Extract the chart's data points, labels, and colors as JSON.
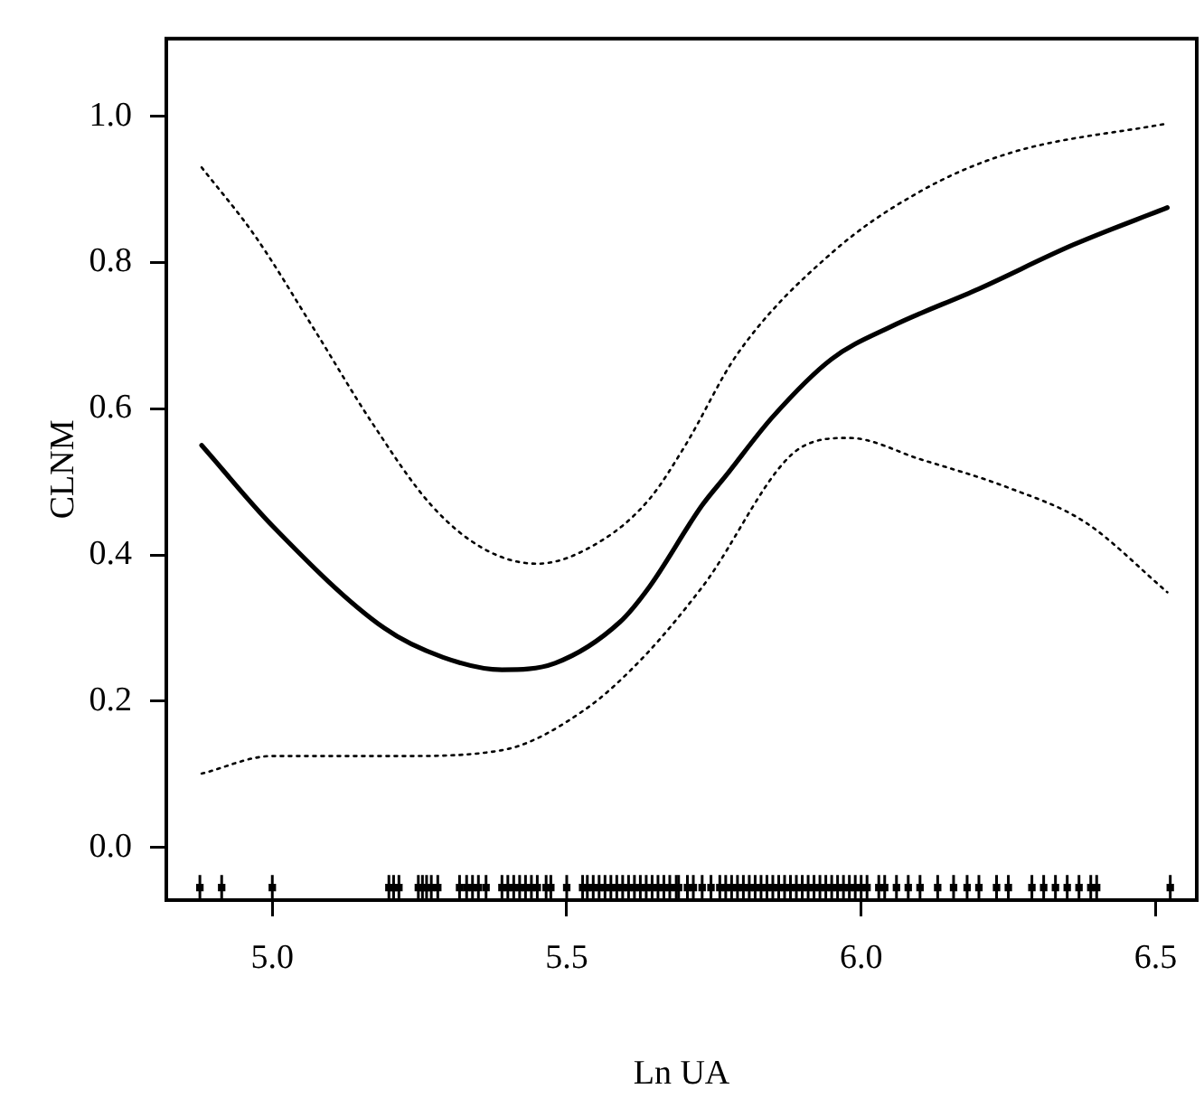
{
  "chart_data": {
    "type": "line",
    "xlabel": "Ln UA",
    "ylabel": "CLNM",
    "xlim": [
      4.82,
      6.57
    ],
    "ylim": [
      -0.072,
      1.106
    ],
    "xticks": [
      {
        "value": 5,
        "label": "5.0"
      },
      {
        "value": 5.5,
        "label": "5.5"
      },
      {
        "value": 6,
        "label": "6.0"
      },
      {
        "value": 6.5,
        "label": "6.5"
      }
    ],
    "yticks": [
      {
        "value": 0,
        "label": "0.0"
      },
      {
        "value": 0.2,
        "label": "0.2"
      },
      {
        "value": 0.4,
        "label": "0.4"
      },
      {
        "value": 0.6,
        "label": "0.6"
      },
      {
        "value": 0.8,
        "label": "0.8"
      },
      {
        "value": 1,
        "label": "1.0"
      }
    ],
    "grid": false,
    "legend": false,
    "series": [
      {
        "color": "#000000",
        "line_style": "solid",
        "x": [
          4.88,
          5.0,
          5.19,
          5.29,
          5.39,
          5.48,
          5.59,
          5.64,
          5.73,
          5.77,
          5.85,
          5.95,
          6.05,
          6.2,
          6.36,
          6.52
        ],
        "values": [
          0.55,
          0.44,
          0.3,
          0.26,
          0.243,
          0.252,
          0.308,
          0.356,
          0.468,
          0.508,
          0.589,
          0.668,
          0.712,
          0.764,
          0.824,
          0.875
        ]
      },
      {
        "color": "#000000",
        "line_style": "dotted",
        "x": [
          4.88,
          4.97,
          5.07,
          5.17,
          5.27,
          5.36,
          5.45,
          5.56,
          5.64,
          5.7,
          5.79,
          5.95,
          6.1,
          6.25,
          6.52
        ],
        "values": [
          0.93,
          0.837,
          0.71,
          0.58,
          0.468,
          0.408,
          0.388,
          0.42,
          0.476,
          0.548,
          0.675,
          0.813,
          0.897,
          0.949,
          0.99
        ]
      },
      {
        "color": "#000000",
        "line_style": "dotted",
        "x": [
          4.88,
          5.0,
          5.22,
          5.39,
          5.53,
          5.63,
          5.73,
          5.9,
          5.98,
          6.1,
          6.25,
          6.38,
          6.52
        ],
        "values": [
          0.101,
          0.125,
          0.125,
          0.133,
          0.188,
          0.26,
          0.356,
          0.548,
          0.56,
          0.531,
          0.492,
          0.445,
          0.349
        ]
      },
      {
        "type": "scatter",
        "color": "#000000",
        "x": [
          4.877,
          4.914,
          5.0,
          5.198,
          5.206,
          5.215,
          5.248,
          5.255,
          5.262,
          5.27,
          5.281,
          5.318,
          5.33,
          5.34,
          5.35,
          5.363,
          5.39,
          5.4,
          5.41,
          5.42,
          5.43,
          5.44,
          5.45,
          5.465,
          5.473,
          5.5,
          5.527,
          5.535,
          5.545,
          5.555,
          5.565,
          5.575,
          5.585,
          5.595,
          5.605,
          5.615,
          5.625,
          5.635,
          5.645,
          5.655,
          5.665,
          5.675,
          5.686,
          5.69,
          5.705,
          5.715,
          5.73,
          5.745,
          5.76,
          5.77,
          5.78,
          5.79,
          5.8,
          5.81,
          5.82,
          5.83,
          5.84,
          5.85,
          5.86,
          5.87,
          5.88,
          5.89,
          5.9,
          5.91,
          5.92,
          5.93,
          5.94,
          5.95,
          5.96,
          5.97,
          5.98,
          5.99,
          6.0,
          6.01,
          6.03,
          6.04,
          6.06,
          6.08,
          6.1,
          6.13,
          6.157,
          6.18,
          6.2,
          6.23,
          6.25,
          6.29,
          6.31,
          6.33,
          6.35,
          6.37,
          6.39,
          6.4,
          6.525
        ],
        "values": [
          -0.055,
          -0.055,
          -0.055,
          -0.055,
          -0.055,
          -0.055,
          -0.055,
          -0.055,
          -0.055,
          -0.055,
          -0.055,
          -0.055,
          -0.055,
          -0.055,
          -0.055,
          -0.055,
          -0.055,
          -0.055,
          -0.055,
          -0.055,
          -0.055,
          -0.055,
          -0.055,
          -0.055,
          -0.055,
          -0.055,
          -0.055,
          -0.055,
          -0.055,
          -0.055,
          -0.055,
          -0.055,
          -0.055,
          -0.055,
          -0.055,
          -0.055,
          -0.055,
          -0.055,
          -0.055,
          -0.055,
          -0.055,
          -0.055,
          -0.055,
          -0.055,
          -0.055,
          -0.055,
          -0.055,
          -0.055,
          -0.055,
          -0.055,
          -0.055,
          -0.055,
          -0.055,
          -0.055,
          -0.055,
          -0.055,
          -0.055,
          -0.055,
          -0.055,
          -0.055,
          -0.055,
          -0.055,
          -0.055,
          -0.055,
          -0.055,
          -0.055,
          -0.055,
          -0.055,
          -0.055,
          -0.055,
          -0.055,
          -0.055,
          -0.055,
          -0.055,
          -0.055,
          -0.055,
          -0.055,
          -0.055,
          -0.055,
          -0.055,
          -0.055,
          -0.055,
          -0.055,
          -0.055,
          -0.055,
          -0.055,
          -0.055,
          -0.055,
          -0.055,
          -0.055,
          -0.055,
          -0.055,
          -0.055
        ]
      }
    ]
  }
}
